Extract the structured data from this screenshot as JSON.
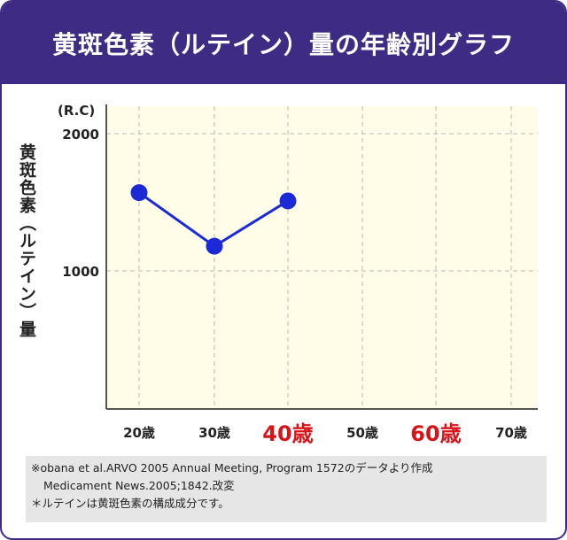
{
  "header": {
    "title": "黄斑色素（ルテイン）量の年齢別グラフ"
  },
  "colors": {
    "header_bg": "#3e2b84",
    "plot_bg": "#fffde8",
    "series": "#1b2ad6",
    "highlight_label": "#d7141a"
  },
  "chart_data": {
    "type": "line",
    "title": "黄斑色素（ルテイン）量の年齢別グラフ",
    "ylabel": "黄斑色素（ルテイン）量",
    "yunit": "(R.C)",
    "xlabel": "",
    "categories": [
      "20歳",
      "30歳",
      "40歳",
      "50歳",
      "60歳",
      "70歳"
    ],
    "highlighted_categories": [
      "40歳",
      "60歳"
    ],
    "yticks": [
      {
        "value": 1000,
        "label": "1000"
      },
      {
        "value": 2000,
        "label": "2000"
      }
    ],
    "ylim": [
      0,
      2200
    ],
    "grid": true,
    "series": [
      {
        "name": "黄斑色素量",
        "values": [
          1570,
          1180,
          1510,
          null,
          null,
          null
        ]
      }
    ]
  },
  "footnote": {
    "line1": "※obana et al.ARVO 2005 Annual Meeting, Program 1572のデータより作成",
    "line2": "Medicament News.2005;1842.改変",
    "line3": "＊ルテインは黄斑色素の構成成分です。"
  }
}
